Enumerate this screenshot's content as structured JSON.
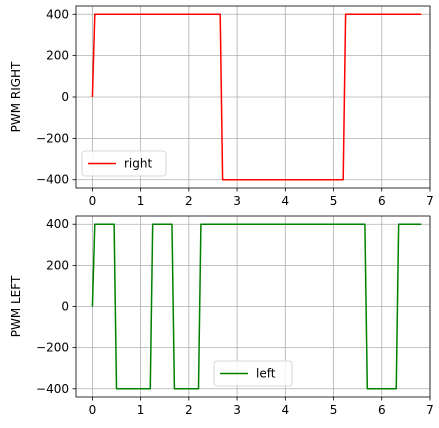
{
  "chart_data": [
    {
      "type": "line",
      "title": "",
      "xlabel": "",
      "ylabel": "PWM RIGHT",
      "xlim": [
        -0.34,
        7.0
      ],
      "ylim": [
        -440,
        440
      ],
      "xticks": [
        0,
        1,
        2,
        3,
        4,
        5,
        6,
        7
      ],
      "yticks": [
        -400,
        -200,
        0,
        200,
        400
      ],
      "grid": true,
      "legend_position": "lower-left",
      "series": [
        {
          "name": "right",
          "color": "#ff0000",
          "x": [
            0.0,
            0.05,
            2.65,
            2.7,
            5.2,
            5.25,
            6.82
          ],
          "y": [
            0,
            400,
            400,
            -400,
            -400,
            400,
            400
          ]
        }
      ]
    },
    {
      "type": "line",
      "title": "",
      "xlabel": "",
      "ylabel": "PWM LEFT",
      "xlim": [
        -0.34,
        7.0
      ],
      "ylim": [
        -440,
        440
      ],
      "xticks": [
        0,
        1,
        2,
        3,
        4,
        5,
        6,
        7
      ],
      "yticks": [
        -400,
        -200,
        0,
        200,
        400
      ],
      "grid": true,
      "legend_position": "lower-center",
      "series": [
        {
          "name": "left",
          "color": "#008000",
          "x": [
            0.0,
            0.05,
            0.45,
            0.5,
            1.2,
            1.25,
            1.65,
            1.7,
            2.2,
            2.25,
            5.65,
            5.7,
            6.3,
            6.35,
            6.82
          ],
          "y": [
            0,
            400,
            400,
            -400,
            -400,
            400,
            400,
            -400,
            -400,
            400,
            400,
            -400,
            -400,
            400,
            400
          ]
        }
      ]
    }
  ]
}
